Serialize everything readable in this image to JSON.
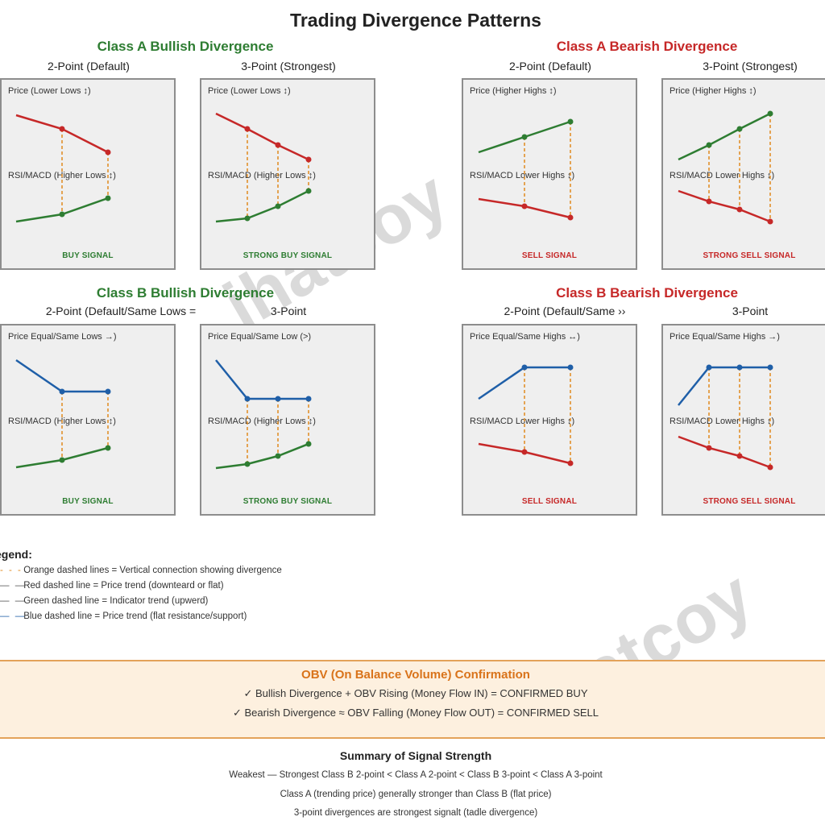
{
  "title": "Trading Divergence Patterns",
  "colors": {
    "green": "#2e7d32",
    "red": "#c62828",
    "blue": "#1f5fa8",
    "orange": "#e08a1e"
  },
  "sections": {
    "a_bull": {
      "title": "Class A Bullish Divergence",
      "sub_left": "2-Point (Default)",
      "sub_right": "3-Point (Strongest)"
    },
    "a_bear": {
      "title": "Class A Bearish Divergence",
      "sub_left": "2-Point (Default)",
      "sub_right": "3-Point (Strongest)"
    },
    "b_bull": {
      "title": "Class B Bullish Divergence",
      "sub_left": "2-Point (Default/Same Lows =",
      "sub_right": "3-Point"
    },
    "b_bear": {
      "title": "Class B Bearish Divergence",
      "sub_left": "2-Point (Default/Same ››",
      "sub_right": "3-Point"
    }
  },
  "panels": {
    "p1": {
      "price_label": "Price (Lower Lows ↕)",
      "ind_label": "RSI/MACD (Higher Lows ↕)",
      "signal": "BUY SIGNAL"
    },
    "p2": {
      "price_label": "Price (Lower Lows ↕)",
      "ind_label": "RSI/MACD (Higher Lows ↕)",
      "signal": "STRONG BUY SIGNAL"
    },
    "p3": {
      "price_label": "Price (Higher Highs ↕)",
      "ind_label": "RSI/MACD Lower Highs ↕)",
      "signal": "SELL SIGNAL"
    },
    "p4": {
      "price_label": "Price (Higher Highs ↕)",
      "ind_label": "RSI/MACD Lower Highs ↕)",
      "signal": "STRONG SELL SIGNAL"
    },
    "p5": {
      "price_label": "Price Equal/Same Lows →)",
      "ind_label": "RSI/MACD (Higher Lows ↕)",
      "signal": "BUY SIGNAL"
    },
    "p6": {
      "price_label": "Price Equal/Same Low (>)",
      "ind_label": "RSI/MACD (Higher Lows ↕)",
      "signal": "STRONG BUY SIGNAL"
    },
    "p7": {
      "price_label": "Price Equal/Same Highs ↔)",
      "ind_label": "RSI/MACD Lower Highs ↕)",
      "signal": "SELL SIGNAL"
    },
    "p8": {
      "price_label": "Price Equal/Same Highs →)",
      "ind_label": "RSI/MACD Lower Highs ↕)",
      "signal": "STRONG SELL SIGNAL"
    }
  },
  "legend": {
    "title": "egend:",
    "items": [
      {
        "symbol": "- - -",
        "text": "Orange dashed lines = Vertical connection showing divergence"
      },
      {
        "symbol": "—  —",
        "text": "Red dashed line = Price trend (downteard or flat)"
      },
      {
        "symbol": "—  —",
        "text": "Green dashed line = Indicator trend (upwerd)"
      },
      {
        "symbol": "—  —",
        "text": "Blue dashed line = Price trend (flat resistance/support)"
      }
    ]
  },
  "obv": {
    "title": "OBV (On Balance Volume) Confirmation",
    "line1": "✓ Bullish Divergence + OBV Rising (Money Flow IN) = CONFIRMED BUY",
    "line2": "✓ Bearish Divergence ≈ OBV Falling (Money Flow OUT) = CONFIRMED SELL"
  },
  "summary": {
    "title": "Summary of Signal Strength",
    "line1": "Weakest — Strongest Class B 2-point < Class A 2-point < Class B 3-point < Class A 3-point",
    "line2": "Class A (trending price) generally stronger than Class B (flat price)",
    "line3": "3-point divergences are strongest signalt (tadle divergence)"
  },
  "watermark": "ihatcoy"
}
